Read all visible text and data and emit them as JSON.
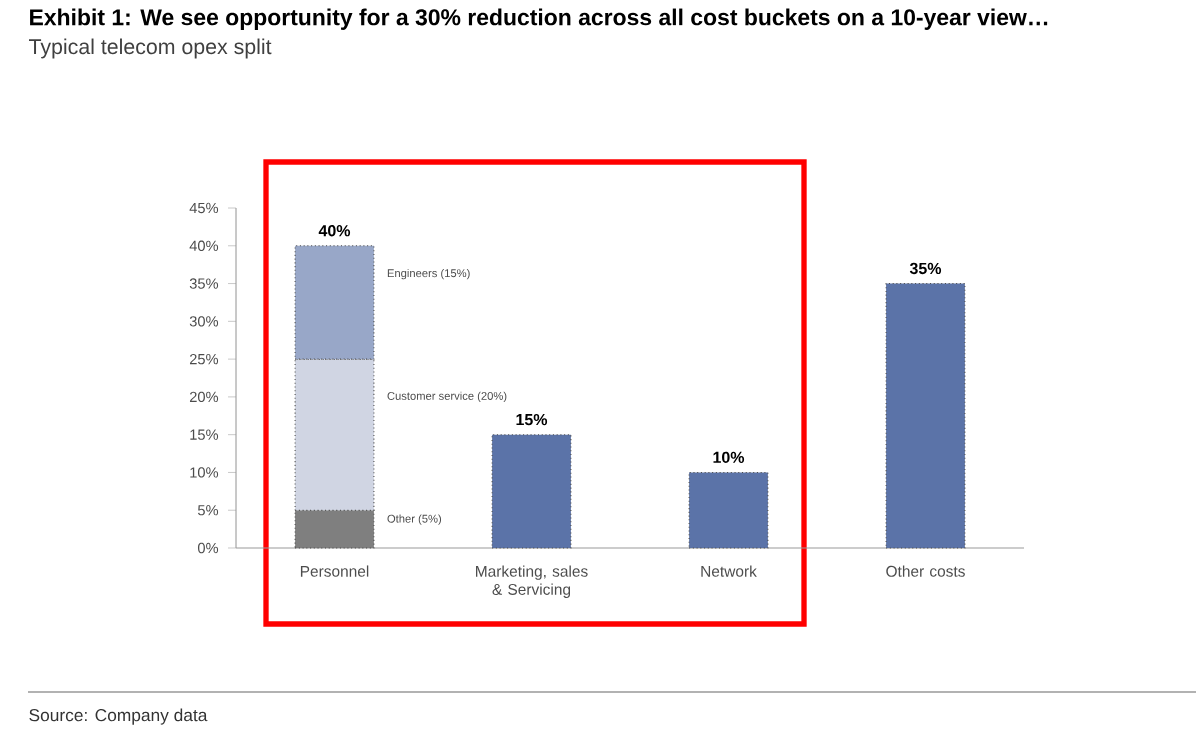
{
  "chart_data": {
    "type": "bar",
    "title": "Exhibit 1: We see opportunity for a 30% reduction across all cost buckets on a 10-year view…",
    "subtitle": "Typical telecom opex split",
    "categories": [
      "Personnel",
      "Marketing, sales & Servicing",
      "Network",
      "Other costs"
    ],
    "stacked": true,
    "series": [
      {
        "name": "Other (5%)",
        "color": "#7f7f7f",
        "values": [
          5,
          null,
          null,
          null
        ]
      },
      {
        "name": "Customer service (20%)",
        "color": "#d0d5e3",
        "values": [
          20,
          null,
          null,
          null
        ]
      },
      {
        "name": "Engineers (15%)",
        "color": "#98a7c8",
        "values": [
          15,
          null,
          null,
          null
        ]
      },
      {
        "color": "#5b73a8",
        "values": [
          null,
          15,
          10,
          35
        ]
      }
    ],
    "totals": [
      "40%",
      "15%",
      "10%",
      "35%"
    ],
    "ylim": [
      0,
      45
    ],
    "yticks": [
      {
        "value": 0,
        "label": "0%"
      },
      {
        "value": 5,
        "label": "5%"
      },
      {
        "value": 10,
        "label": "10%"
      },
      {
        "value": 15,
        "label": "15%"
      },
      {
        "value": 20,
        "label": "20%"
      },
      {
        "value": 25,
        "label": "25%"
      },
      {
        "value": 30,
        "label": "30%"
      },
      {
        "value": 35,
        "label": "35%"
      },
      {
        "value": 40,
        "label": "40%"
      },
      {
        "value": 45,
        "label": "45%"
      }
    ],
    "grid": false,
    "annotations": [
      "Source: Company data"
    ]
  }
}
